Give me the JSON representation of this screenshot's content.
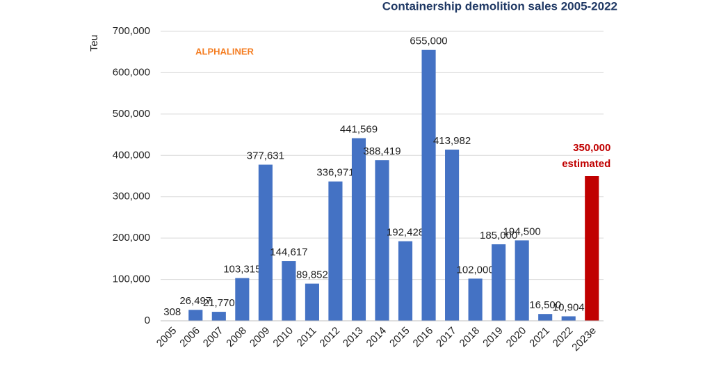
{
  "chart_data": {
    "type": "bar",
    "title": "Containership demolition sales 2005-2022",
    "y_label": "Teu",
    "annotation": "ALPHALINER",
    "estimate_note": "estimated",
    "categories": [
      "2005",
      "2006",
      "2007",
      "2008",
      "2009",
      "2010",
      "2011",
      "2012",
      "2013",
      "2014",
      "2015",
      "2016",
      "2017",
      "2018",
      "2019",
      "2020",
      "2021",
      "2022",
      "2023e"
    ],
    "values": [
      308,
      26497,
      21770,
      103315,
      377631,
      144617,
      89852,
      336971,
      441569,
      388419,
      192428,
      655000,
      413982,
      102000,
      185000,
      194500,
      16500,
      10904,
      350000
    ],
    "value_labels": [
      "308",
      "26,497",
      "21,770",
      "103,315",
      "377,631",
      "144,617",
      "89,852",
      "336,971",
      "441,569",
      "388,419",
      "192,428",
      "655,000",
      "413,982",
      "102,000",
      "185,000",
      "194,500",
      "16,500",
      "10,904",
      "350,000"
    ],
    "colors": [
      "#4472c4",
      "#4472c4",
      "#4472c4",
      "#4472c4",
      "#4472c4",
      "#4472c4",
      "#4472c4",
      "#4472c4",
      "#4472c4",
      "#4472c4",
      "#4472c4",
      "#4472c4",
      "#4472c4",
      "#4472c4",
      "#4472c4",
      "#4472c4",
      "#4472c4",
      "#4472c4",
      "#c00000"
    ],
    "ylim": [
      0,
      700000
    ],
    "yticks": [
      0,
      {
        "value": 100000,
        "label": "100,000"
      },
      {
        "value": 200000,
        "label": "200,000"
      },
      {
        "value": 300000,
        "label": "300,000"
      },
      {
        "value": 400000,
        "label": "400,000"
      },
      {
        "value": 500000,
        "label": "500,000"
      },
      {
        "value": 600000,
        "label": "600,000"
      },
      {
        "value": 700000,
        "label": "700,000"
      }
    ],
    "grid": true
  }
}
